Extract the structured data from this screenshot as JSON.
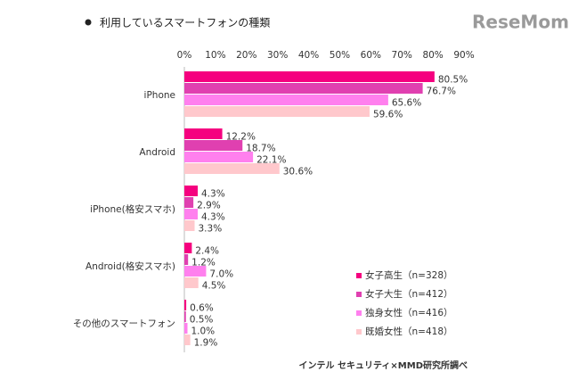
{
  "chart_data": {
    "type": "hbar",
    "title": "利用しているスマートフォンの種類",
    "logo": "ReseMom",
    "source": "インテル セキュリティ×MMD研究所調べ",
    "categories": [
      "iPhone",
      "Android",
      "iPhone(格安スマホ)",
      "Android(格安スマホ)",
      "その他のスマートフォン"
    ],
    "series": [
      {
        "name": "女子高生（n=328）",
        "color": "#f5007f",
        "values": [
          80.5,
          12.2,
          4.3,
          2.4,
          0.6
        ],
        "value_labels": [
          "80.5%",
          "12.2%",
          "4.3%",
          "2.4%",
          "0.6%"
        ]
      },
      {
        "name": "女子大生（n=412）",
        "color": "#e040b0",
        "values": [
          76.7,
          18.7,
          2.9,
          1.2,
          0.5
        ],
        "value_labels": [
          "76.7%",
          "18.7%",
          "2.9%",
          "1.2%",
          "0.5%"
        ]
      },
      {
        "name": "独身女性（n=416）",
        "color": "#ff80ee",
        "values": [
          65.6,
          22.1,
          4.3,
          7.0,
          1.0
        ],
        "value_labels": [
          "65.6%",
          "22.1%",
          "4.3%",
          "7.0%",
          "1.0%"
        ]
      },
      {
        "name": "既婚女性（n=418）",
        "color": "#ffc8cc",
        "values": [
          59.6,
          30.6,
          3.3,
          4.5,
          1.9
        ],
        "value_labels": [
          "59.6%",
          "30.6%",
          "3.3%",
          "4.5%",
          "1.9%"
        ]
      }
    ],
    "xlim": [
      0,
      90
    ],
    "xticks": [
      {
        "value": 0,
        "label": "0%"
      },
      {
        "value": 10,
        "label": "10%"
      },
      {
        "value": 20,
        "label": "20%"
      },
      {
        "value": 30,
        "label": "30%"
      },
      {
        "value": 40,
        "label": "40%"
      },
      {
        "value": 50,
        "label": "50%"
      },
      {
        "value": 60,
        "label": "60%"
      },
      {
        "value": 70,
        "label": "70%"
      },
      {
        "value": 80,
        "label": "80%"
      },
      {
        "value": 90,
        "label": "90%"
      }
    ],
    "legend": "lower-right"
  }
}
